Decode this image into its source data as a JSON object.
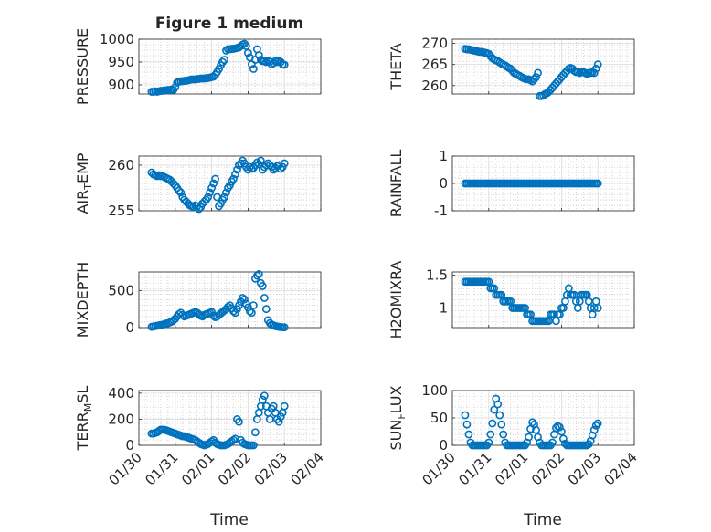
{
  "figure": {
    "title": "Figure 1 medium"
  },
  "x_tick_labels": [
    "01/30",
    "01/31",
    "02/01",
    "02/02",
    "02/03",
    "02/04"
  ],
  "x_label": "Time",
  "colors": {
    "marker": "#0072bd",
    "axis": "#262626",
    "grid": "#c8c8c8"
  },
  "chart_data": [
    {
      "type": "scatter",
      "ylabel": "PRESSURE",
      "ylim": [
        880,
        1000
      ],
      "yticks": [
        900,
        950,
        1000
      ],
      "xlim": [
        0,
        5
      ],
      "grid": true,
      "x": [
        0.35,
        0.4,
        0.45,
        0.5,
        0.55,
        0.6,
        0.65,
        0.7,
        0.75,
        0.8,
        0.85,
        0.9,
        0.95,
        1.0,
        1.05,
        1.1,
        1.15,
        1.2,
        1.25,
        1.3,
        1.35,
        1.4,
        1.45,
        1.5,
        1.55,
        1.6,
        1.65,
        1.7,
        1.75,
        1.8,
        1.85,
        1.9,
        1.95,
        2.0,
        2.05,
        2.1,
        2.15,
        2.2,
        2.25,
        2.3,
        2.35,
        2.4,
        2.45,
        2.5,
        2.55,
        2.6,
        2.65,
        2.7,
        2.75,
        2.8,
        2.85,
        2.9,
        2.95,
        3.0,
        3.05,
        3.1,
        3.15,
        3.2,
        3.25,
        3.3,
        3.35,
        3.4,
        3.45,
        3.5,
        3.55,
        3.6,
        3.65,
        3.7,
        3.75,
        3.8,
        3.85,
        3.9,
        3.95,
        4.0
      ],
      "y": [
        885,
        885,
        886,
        885,
        886,
        887,
        887,
        888,
        888,
        889,
        889,
        890,
        889,
        895,
        905,
        907,
        908,
        908,
        909,
        909,
        910,
        911,
        912,
        912,
        912,
        913,
        913,
        914,
        914,
        914,
        915,
        915,
        916,
        917,
        918,
        922,
        928,
        935,
        943,
        950,
        955,
        975,
        978,
        978,
        979,
        979,
        980,
        981,
        982,
        985,
        988,
        990,
        985,
        970,
        960,
        945,
        935,
        955,
        978,
        965,
        955,
        952,
        952,
        950,
        952,
        951,
        945,
        948,
        952,
        950,
        952,
        950,
        945,
        944
      ]
    },
    {
      "type": "scatter",
      "ylabel": "THETA",
      "ylim": [
        258,
        271
      ],
      "yticks": [
        260,
        265,
        270
      ],
      "xlim": [
        0,
        5
      ],
      "grid": true,
      "x": [
        0.35,
        0.4,
        0.45,
        0.5,
        0.55,
        0.6,
        0.65,
        0.7,
        0.75,
        0.8,
        0.85,
        0.9,
        0.95,
        1.0,
        1.05,
        1.1,
        1.15,
        1.2,
        1.25,
        1.3,
        1.35,
        1.4,
        1.45,
        1.5,
        1.55,
        1.6,
        1.65,
        1.7,
        1.75,
        1.8,
        1.85,
        1.9,
        1.95,
        2.0,
        2.05,
        2.1,
        2.15,
        2.2,
        2.25,
        2.3,
        2.35,
        2.4,
        2.45,
        2.5,
        2.55,
        2.6,
        2.65,
        2.7,
        2.75,
        2.8,
        2.85,
        2.9,
        2.95,
        3.0,
        3.05,
        3.1,
        3.15,
        3.2,
        3.25,
        3.3,
        3.35,
        3.4,
        3.45,
        3.5,
        3.55,
        3.6,
        3.65,
        3.7,
        3.75,
        3.8,
        3.85,
        3.9,
        3.95,
        4.0
      ],
      "y": [
        268.7,
        268.6,
        268.6,
        268.5,
        268.4,
        268.3,
        268.2,
        268.1,
        268.0,
        268.0,
        267.9,
        267.8,
        267.7,
        267.5,
        267.0,
        266.5,
        266.2,
        266.0,
        265.8,
        265.5,
        265.2,
        265.0,
        264.8,
        264.5,
        264.2,
        264.0,
        263.5,
        263.0,
        262.8,
        262.5,
        262.3,
        262.0,
        261.8,
        261.6,
        261.5,
        261.5,
        261.3,
        261.0,
        261.5,
        262.0,
        263.0,
        257.5,
        257.5,
        257.7,
        258.0,
        258.2,
        258.5,
        259.0,
        259.5,
        260.0,
        260.5,
        261.0,
        261.5,
        262.0,
        262.5,
        263.0,
        263.5,
        264.0,
        264.2,
        264.0,
        263.5,
        263.2,
        263.2,
        263.0,
        263.3,
        263.2,
        263.0,
        262.8,
        263.0,
        263.0,
        263.2,
        263.0,
        264.0,
        265.0
      ]
    },
    {
      "type": "scatter",
      "ylabel": "AIR_TEMP",
      "ylim": [
        255,
        261
      ],
      "yticks": [
        255,
        260
      ],
      "xlim": [
        0,
        5
      ],
      "grid": true,
      "x": [
        0.35,
        0.4,
        0.45,
        0.5,
        0.55,
        0.6,
        0.65,
        0.7,
        0.75,
        0.8,
        0.85,
        0.9,
        0.95,
        1.0,
        1.05,
        1.1,
        1.15,
        1.2,
        1.25,
        1.3,
        1.35,
        1.4,
        1.45,
        1.5,
        1.55,
        1.6,
        1.65,
        1.7,
        1.75,
        1.8,
        1.85,
        1.9,
        1.95,
        2.0,
        2.05,
        2.1,
        2.15,
        2.2,
        2.25,
        2.3,
        2.35,
        2.4,
        2.45,
        2.5,
        2.55,
        2.6,
        2.65,
        2.7,
        2.75,
        2.8,
        2.85,
        2.9,
        2.95,
        3.0,
        3.05,
        3.1,
        3.15,
        3.2,
        3.25,
        3.3,
        3.35,
        3.4,
        3.45,
        3.5,
        3.55,
        3.6,
        3.65,
        3.7,
        3.75,
        3.8,
        3.85,
        3.9,
        3.95,
        4.0
      ],
      "y": [
        259.2,
        259.0,
        258.9,
        258.8,
        258.9,
        258.8,
        258.8,
        258.7,
        258.6,
        258.5,
        258.4,
        258.2,
        258.0,
        257.8,
        257.5,
        257.2,
        257.0,
        256.5,
        256.2,
        256.0,
        255.8,
        255.6,
        255.5,
        255.4,
        255.6,
        255.5,
        255.2,
        255.4,
        255.8,
        256.0,
        256.2,
        256.5,
        257.0,
        257.5,
        258.0,
        258.5,
        256.5,
        255.5,
        255.8,
        256.2,
        256.5,
        257.0,
        257.5,
        257.8,
        258.2,
        258.5,
        259.0,
        259.5,
        260.0,
        260.2,
        260.5,
        260.2,
        259.8,
        259.5,
        259.8,
        259.6,
        259.7,
        260.0,
        260.3,
        260.1,
        260.5,
        259.5,
        259.8,
        260.0,
        260.2,
        260.0,
        259.8,
        259.5,
        259.7,
        259.9,
        260.0,
        259.6,
        259.8,
        260.2
      ]
    },
    {
      "type": "scatter",
      "ylabel": "RAINFALL",
      "ylim": [
        -1,
        1
      ],
      "yticks": [
        -1,
        0,
        1
      ],
      "xlim": [
        0,
        5
      ],
      "grid": true,
      "x": [
        0.35,
        0.4,
        0.45,
        0.5,
        0.55,
        0.6,
        0.65,
        0.7,
        0.75,
        0.8,
        0.85,
        0.9,
        0.95,
        1.0,
        1.05,
        1.1,
        1.15,
        1.2,
        1.25,
        1.3,
        1.35,
        1.4,
        1.45,
        1.5,
        1.55,
        1.6,
        1.65,
        1.7,
        1.75,
        1.8,
        1.85,
        1.9,
        1.95,
        2.0,
        2.05,
        2.1,
        2.15,
        2.2,
        2.25,
        2.3,
        2.35,
        2.4,
        2.45,
        2.5,
        2.55,
        2.6,
        2.65,
        2.7,
        2.75,
        2.8,
        2.85,
        2.9,
        2.95,
        3.0,
        3.05,
        3.1,
        3.15,
        3.2,
        3.25,
        3.3,
        3.35,
        3.4,
        3.45,
        3.5,
        3.55,
        3.6,
        3.65,
        3.7,
        3.75,
        3.8,
        3.85,
        3.9,
        3.95,
        4.0
      ],
      "y": [
        0,
        0,
        0,
        0,
        0,
        0,
        0,
        0,
        0,
        0,
        0,
        0,
        0,
        0,
        0,
        0,
        0,
        0,
        0,
        0,
        0,
        0,
        0,
        0,
        0,
        0,
        0,
        0,
        0,
        0,
        0,
        0,
        0,
        0,
        0,
        0,
        0,
        0,
        0,
        0,
        0,
        0,
        0,
        0,
        0,
        0,
        0,
        0,
        0,
        0,
        0,
        0,
        0,
        0,
        0,
        0,
        0,
        0,
        0,
        0,
        0,
        0,
        0,
        0,
        0,
        0,
        0,
        0,
        0,
        0,
        0,
        0,
        0,
        0
      ]
    },
    {
      "type": "scatter",
      "ylabel": "MIXDEPTH",
      "ylim": [
        0,
        750
      ],
      "yticks": [
        0,
        500
      ],
      "xlim": [
        0,
        5
      ],
      "grid": true,
      "x": [
        0.35,
        0.4,
        0.45,
        0.5,
        0.55,
        0.6,
        0.65,
        0.7,
        0.75,
        0.8,
        0.85,
        0.9,
        0.95,
        1.0,
        1.05,
        1.1,
        1.15,
        1.2,
        1.25,
        1.3,
        1.35,
        1.4,
        1.45,
        1.5,
        1.55,
        1.6,
        1.65,
        1.7,
        1.75,
        1.8,
        1.85,
        1.9,
        1.95,
        2.0,
        2.05,
        2.1,
        2.15,
        2.2,
        2.25,
        2.3,
        2.35,
        2.4,
        2.45,
        2.5,
        2.55,
        2.6,
        2.65,
        2.7,
        2.75,
        2.8,
        2.85,
        2.9,
        2.95,
        3.0,
        3.05,
        3.1,
        3.15,
        3.2,
        3.25,
        3.3,
        3.35,
        3.4,
        3.45,
        3.5,
        3.55,
        3.6,
        3.65,
        3.7,
        3.75,
        3.8,
        3.85,
        3.9,
        3.95,
        4.0
      ],
      "y": [
        10,
        15,
        20,
        25,
        30,
        35,
        40,
        45,
        55,
        60,
        70,
        80,
        100,
        120,
        150,
        180,
        200,
        170,
        150,
        160,
        170,
        180,
        190,
        200,
        210,
        200,
        180,
        160,
        150,
        170,
        180,
        190,
        200,
        210,
        160,
        140,
        150,
        170,
        190,
        210,
        230,
        250,
        280,
        300,
        260,
        220,
        200,
        250,
        300,
        350,
        400,
        380,
        320,
        270,
        220,
        200,
        300,
        660,
        700,
        720,
        600,
        560,
        400,
        250,
        100,
        60,
        40,
        30,
        20,
        15,
        10,
        8,
        5,
        5
      ]
    },
    {
      "type": "scatter",
      "ylabel": "H2OMIXRA",
      "ylim": [
        0.7,
        1.55
      ],
      "yticks": [
        1,
        1.5
      ],
      "xlim": [
        0,
        5
      ],
      "grid": true,
      "x": [
        0.35,
        0.4,
        0.45,
        0.5,
        0.55,
        0.6,
        0.65,
        0.7,
        0.75,
        0.8,
        0.85,
        0.9,
        0.95,
        1.0,
        1.05,
        1.1,
        1.15,
        1.2,
        1.25,
        1.3,
        1.35,
        1.4,
        1.45,
        1.5,
        1.55,
        1.6,
        1.65,
        1.7,
        1.75,
        1.8,
        1.85,
        1.9,
        1.95,
        2.0,
        2.05,
        2.1,
        2.15,
        2.2,
        2.25,
        2.3,
        2.35,
        2.4,
        2.45,
        2.5,
        2.55,
        2.6,
        2.65,
        2.7,
        2.75,
        2.8,
        2.85,
        2.9,
        2.95,
        3.0,
        3.05,
        3.1,
        3.15,
        3.2,
        3.25,
        3.3,
        3.35,
        3.4,
        3.45,
        3.5,
        3.55,
        3.6,
        3.65,
        3.7,
        3.75,
        3.8,
        3.85,
        3.9,
        3.95,
        4.0
      ],
      "y": [
        1.4,
        1.4,
        1.4,
        1.4,
        1.4,
        1.4,
        1.4,
        1.4,
        1.4,
        1.4,
        1.4,
        1.4,
        1.4,
        1.4,
        1.3,
        1.3,
        1.3,
        1.2,
        1.2,
        1.2,
        1.2,
        1.1,
        1.1,
        1.1,
        1.1,
        1.1,
        1.0,
        1.0,
        1.0,
        1.0,
        1.0,
        1.0,
        1.0,
        1.0,
        0.9,
        0.9,
        0.9,
        0.8,
        0.8,
        0.8,
        0.8,
        0.8,
        0.8,
        0.8,
        0.8,
        0.8,
        0.8,
        0.9,
        0.9,
        0.9,
        0.8,
        0.9,
        0.9,
        1.0,
        1.0,
        1.1,
        1.2,
        1.3,
        1.2,
        1.2,
        1.2,
        1.1,
        1.0,
        1.1,
        1.2,
        1.2,
        1.2,
        1.2,
        1.1,
        1.0,
        0.9,
        1.0,
        1.1,
        1.0
      ]
    },
    {
      "type": "scatter",
      "ylabel": "TERR_MSL",
      "ylim": [
        0,
        420
      ],
      "yticks": [
        0,
        200,
        400
      ],
      "xlim": [
        0,
        5
      ],
      "grid": true,
      "x": [
        0.35,
        0.4,
        0.45,
        0.5,
        0.55,
        0.6,
        0.65,
        0.7,
        0.75,
        0.8,
        0.85,
        0.9,
        0.95,
        1.0,
        1.05,
        1.1,
        1.15,
        1.2,
        1.25,
        1.3,
        1.35,
        1.4,
        1.45,
        1.5,
        1.55,
        1.6,
        1.65,
        1.7,
        1.75,
        1.8,
        1.85,
        1.9,
        1.95,
        2.0,
        2.05,
        2.1,
        2.15,
        2.2,
        2.25,
        2.3,
        2.35,
        2.4,
        2.45,
        2.5,
        2.55,
        2.6,
        2.65,
        2.7,
        2.75,
        2.8,
        2.85,
        2.9,
        2.95,
        3.0,
        3.05,
        3.1,
        3.15,
        3.2,
        3.25,
        3.3,
        3.35,
        3.4,
        3.45,
        3.5,
        3.55,
        3.6,
        3.65,
        3.7,
        3.75,
        3.8,
        3.85,
        3.9,
        3.95,
        4.0
      ],
      "y": [
        90,
        90,
        95,
        100,
        110,
        120,
        120,
        118,
        115,
        110,
        105,
        100,
        95,
        90,
        85,
        80,
        75,
        70,
        70,
        65,
        60,
        55,
        50,
        45,
        40,
        30,
        20,
        10,
        5,
        0,
        5,
        10,
        20,
        30,
        40,
        20,
        10,
        5,
        0,
        0,
        0,
        5,
        10,
        20,
        30,
        40,
        50,
        200,
        180,
        40,
        20,
        10,
        5,
        0,
        0,
        0,
        0,
        100,
        200,
        250,
        300,
        350,
        380,
        300,
        250,
        200,
        280,
        300,
        250,
        200,
        180,
        220,
        250,
        300
      ]
    },
    {
      "type": "scatter",
      "ylabel": "SUN_FLUX",
      "ylim": [
        0,
        100
      ],
      "yticks": [
        0,
        50,
        100
      ],
      "xlim": [
        0,
        5
      ],
      "grid": true,
      "x": [
        0.35,
        0.4,
        0.45,
        0.5,
        0.55,
        0.6,
        0.65,
        0.7,
        0.75,
        0.8,
        0.85,
        0.9,
        0.95,
        1.0,
        1.05,
        1.1,
        1.15,
        1.2,
        1.25,
        1.3,
        1.35,
        1.4,
        1.45,
        1.5,
        1.55,
        1.6,
        1.65,
        1.7,
        1.75,
        1.8,
        1.85,
        1.9,
        1.95,
        2.0,
        2.05,
        2.1,
        2.15,
        2.2,
        2.25,
        2.3,
        2.35,
        2.4,
        2.45,
        2.5,
        2.55,
        2.6,
        2.65,
        2.7,
        2.75,
        2.8,
        2.85,
        2.9,
        2.95,
        3.0,
        3.05,
        3.1,
        3.15,
        3.2,
        3.25,
        3.3,
        3.35,
        3.4,
        3.45,
        3.5,
        3.55,
        3.6,
        3.65,
        3.7,
        3.75,
        3.8,
        3.85,
        3.9,
        3.95,
        4.0
      ],
      "y": [
        55,
        38,
        20,
        5,
        0,
        0,
        0,
        0,
        0,
        0,
        0,
        0,
        0,
        5,
        20,
        40,
        65,
        85,
        75,
        55,
        38,
        20,
        5,
        0,
        0,
        0,
        0,
        0,
        0,
        0,
        0,
        0,
        0,
        0,
        5,
        15,
        30,
        42,
        38,
        28,
        15,
        5,
        0,
        0,
        0,
        0,
        0,
        0,
        5,
        20,
        32,
        35,
        33,
        25,
        12,
        3,
        0,
        0,
        0,
        0,
        0,
        0,
        0,
        0,
        0,
        0,
        0,
        0,
        2,
        8,
        18,
        28,
        36,
        40
      ]
    }
  ]
}
